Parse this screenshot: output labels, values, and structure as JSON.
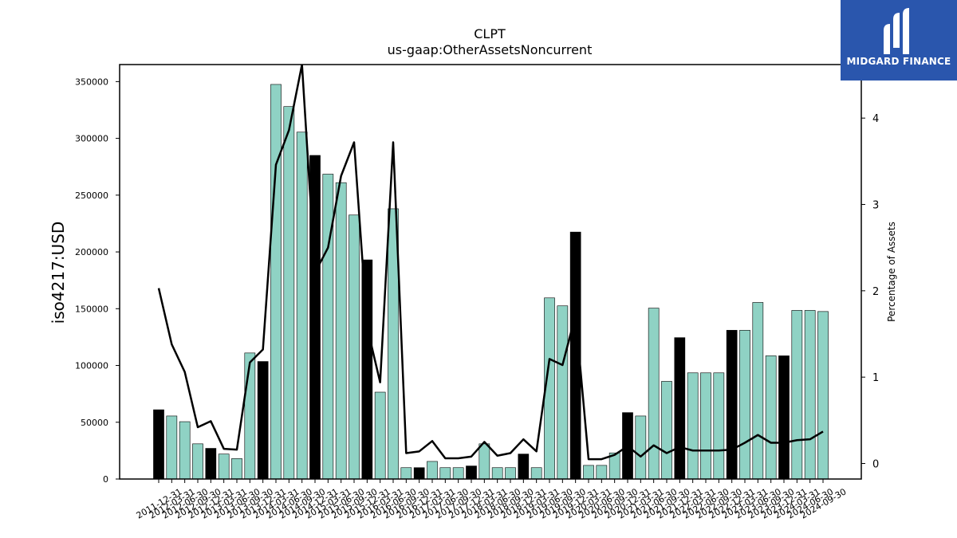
{
  "chart_data": {
    "type": "bar",
    "title": "CLPT",
    "subtitle": "us-gaap:OtherAssetsNoncurrent",
    "ylabel": "iso4217:USD",
    "y2label": "Percentage of Assets",
    "ylim": [
      0,
      365000
    ],
    "y2lim": [
      -0.18,
      4.62
    ],
    "yticks": [
      0,
      50000,
      100000,
      150000,
      200000,
      250000,
      300000,
      350000
    ],
    "y2ticks": [
      0,
      1,
      2,
      3,
      4
    ],
    "categories": [
      "2011-12-31",
      "2012-03-31",
      "2012-06-30",
      "2012-09-30",
      "2012-12-31",
      "2013-03-31",
      "2013-06-30",
      "2013-09-30",
      "2013-12-31",
      "2014-03-31",
      "2014-06-30",
      "2014-09-30",
      "2014-12-31",
      "2015-03-31",
      "2015-06-30",
      "2015-09-30",
      "2015-12-31",
      "2016-03-31",
      "2016-06-30",
      "2016-09-30",
      "2016-12-31",
      "2017-03-31",
      "2017-06-30",
      "2017-09-30",
      "2017-12-31",
      "2018-03-31",
      "2018-06-30",
      "2018-09-30",
      "2018-12-31",
      "2019-03-31",
      "2019-06-30",
      "2019-09-30",
      "2019-12-31",
      "2020-03-31",
      "2020-06-30",
      "2020-09-30",
      "2020-12-31",
      "2021-03-31",
      "2021-06-30",
      "2021-09-30",
      "2021-12-31",
      "2022-03-31",
      "2022-06-30",
      "2022-09-30",
      "2022-12-31",
      "2023-03-31",
      "2023-06-30",
      "2023-09-30",
      "2023-12-31",
      "2024-03-31",
      "2024-06-30",
      "2024-09-30"
    ],
    "tick_labels": [
      "2011-12-31",
      "2012-03-31",
      "2012-06-30",
      "2012-09-30",
      "2012-12-31",
      "2013-03-31",
      "2013-06-30",
      "2013-09-30",
      "2013-12-31",
      "2014-03-31",
      "2014-06-30",
      "2014-09-30",
      "2014-12-31",
      "2015-03-31",
      "2015-06-30",
      "2015-09-30",
      "2015-12-31",
      "2016-03-31",
      "2016-06-30",
      "2016-09-30",
      "2016-12-31",
      "2017-03-31",
      "2017-06-30",
      "2017-09-30",
      "2017-12-31",
      "2018-03-31",
      "2018-06-30",
      "2018-09-30",
      "2018-12-31",
      "2019-03-31",
      "2019-06-30",
      "2019-09-30",
      "2019-12-31",
      "2020-03-31",
      "2020-06-30",
      "2020-09-30",
      "2020-12-31",
      "2021-03-31",
      "2021-06-30",
      "2021-09-30",
      "2021-12-31",
      "2022-03-31",
      "2022-06-30",
      "2022-09-30",
      "2022-12-31",
      "2023-03-31",
      "2023-06-30",
      "2023-09-30",
      "2023-12-31",
      "2024-03-31",
      "2024-06-30",
      "2024-09-30"
    ],
    "series": [
      {
        "type": "bar",
        "axis": "left",
        "values": [
          61000,
          55500,
          50500,
          31000,
          27000,
          22000,
          18000,
          111000,
          103500,
          347500,
          328000,
          305500,
          285000,
          268500,
          261000,
          232500,
          193000,
          76500,
          238000,
          10000,
          10000,
          15500,
          10000,
          10000,
          11500,
          31000,
          10000,
          10000,
          22000,
          10000,
          159500,
          152500,
          217500,
          12000,
          12000,
          23000,
          58500,
          55500,
          150500,
          86000,
          124500,
          93500,
          93500,
          93500,
          131000,
          131000,
          155500,
          108500,
          108500,
          148500,
          148500,
          147500
        ]
      },
      {
        "type": "line",
        "axis": "right",
        "values": [
          2.03,
          1.38,
          1.06,
          0.42,
          0.49,
          0.17,
          0.16,
          1.17,
          1.32,
          3.46,
          3.86,
          4.62,
          2.21,
          2.5,
          3.33,
          3.72,
          1.58,
          0.94,
          3.72,
          0.12,
          0.14,
          0.26,
          0.06,
          0.06,
          0.08,
          0.25,
          0.09,
          0.12,
          0.28,
          0.14,
          1.21,
          1.14,
          1.72,
          0.05,
          0.05,
          0.1,
          0.2,
          0.08,
          0.21,
          0.12,
          0.19,
          0.15,
          0.15,
          0.15,
          0.16,
          0.24,
          0.33,
          0.24,
          0.24,
          0.27,
          0.28,
          0.37
        ]
      }
    ],
    "colors": {
      "bar_fill": "#8fd2c4",
      "bar_highlight": "#000000",
      "bar_edge": "#000000",
      "line": "#000000"
    },
    "highlight_months": [
      "12"
    ],
    "grid": false,
    "legend": "none"
  },
  "logo": {
    "name": "MIDGARD FINANCE",
    "background": "#2a56ad"
  }
}
